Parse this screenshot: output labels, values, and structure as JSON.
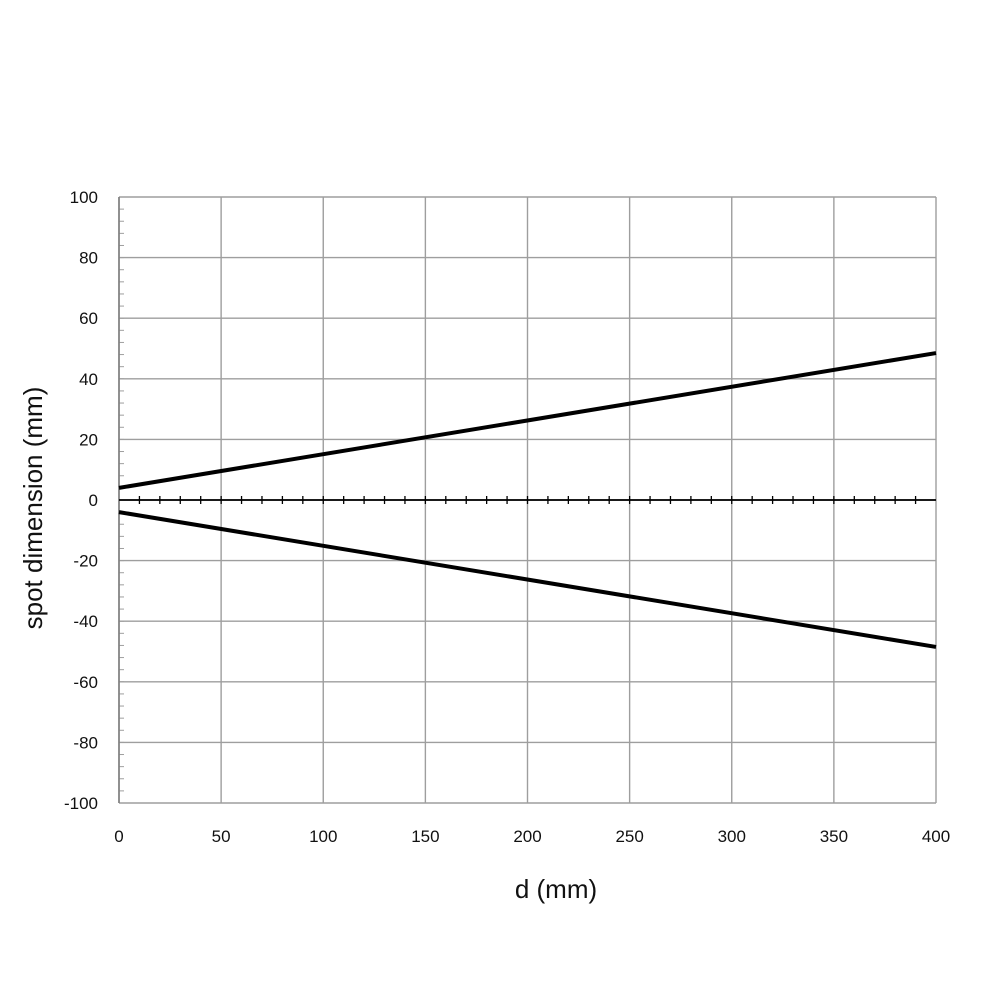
{
  "chart_data": {
    "type": "line",
    "title": "",
    "xlabel": "d (mm)",
    "ylabel": "spot dimension (mm)",
    "xlim": [
      0,
      400
    ],
    "ylim": [
      -100,
      100
    ],
    "x_ticks": [
      0,
      50,
      100,
      150,
      200,
      250,
      300,
      350,
      400
    ],
    "y_ticks": [
      100,
      80,
      60,
      40,
      20,
      0,
      -20,
      -40,
      -60,
      -80,
      -100
    ],
    "x_tick_labels": [
      "0",
      "50",
      "100",
      "150",
      "200",
      "250",
      "300",
      "350",
      "400"
    ],
    "y_tick_labels": [
      "100",
      "80",
      "60",
      "40",
      "20",
      "0",
      "-20",
      "-40",
      "-60",
      "-80",
      "-100"
    ],
    "grid": true,
    "series": [
      {
        "x": [
          0,
          400
        ],
        "y": [
          4,
          48.5
        ]
      },
      {
        "x": [
          0,
          400
        ],
        "y": [
          -4,
          -48.5
        ]
      }
    ],
    "colors": {
      "line": "#000000",
      "grid": "#9e9e9e",
      "axis": "#000000"
    }
  }
}
